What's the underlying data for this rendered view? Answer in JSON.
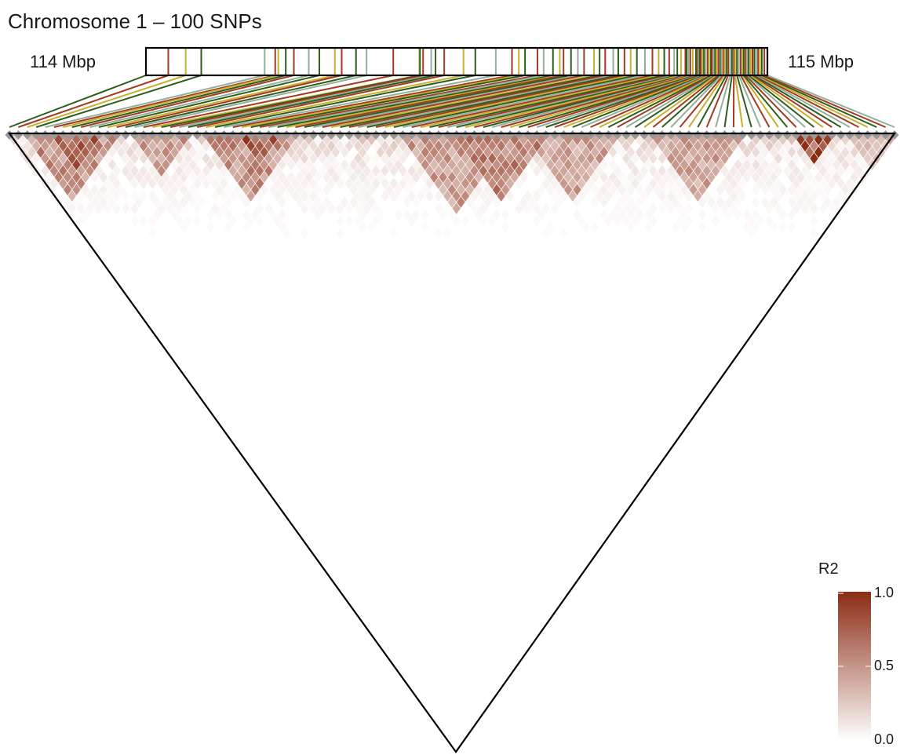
{
  "title": "Chromosome 1 – 100 SNPs",
  "region": {
    "start_label": "114 Mbp",
    "end_label": "115 Mbp",
    "start_mbp": 114.0,
    "end_mbp": 115.0
  },
  "legend": {
    "title": "R2",
    "ticks": [
      "1.0",
      "0.5",
      "0.0"
    ],
    "low_color": "#ffffff",
    "high_color": "#8b2c14"
  },
  "chart_data": {
    "type": "heatmap",
    "title": "Chromosome 1 – 100 SNPs",
    "n_snps": 100,
    "value_range": [
      0,
      1
    ],
    "value_name": "R2",
    "snp_positions_mbp": [
      114.0,
      114.036,
      114.064,
      114.089,
      114.191,
      114.208,
      114.213,
      114.225,
      114.238,
      114.262,
      114.279,
      114.304,
      114.315,
      114.338,
      114.355,
      114.398,
      114.44,
      114.441,
      114.446,
      114.459,
      114.466,
      114.48,
      114.511,
      114.53,
      114.563,
      114.589,
      114.6,
      114.61,
      114.63,
      114.64,
      114.655,
      114.666,
      114.672,
      114.684,
      114.695,
      114.705,
      114.721,
      114.73,
      114.739,
      114.752,
      114.76,
      114.77,
      114.78,
      114.79,
      114.803,
      114.815,
      114.825,
      114.834,
      114.842,
      114.85,
      114.855,
      114.861,
      114.868,
      114.87,
      114.873,
      114.876,
      114.88,
      114.885,
      114.887,
      114.889,
      114.891,
      114.893,
      114.896,
      114.898,
      114.901,
      114.904,
      114.906,
      114.909,
      114.911,
      114.914,
      114.916,
      114.918,
      114.921,
      114.924,
      114.926,
      114.929,
      114.931,
      114.934,
      114.937,
      114.94,
      114.943,
      114.946,
      114.948,
      114.951,
      114.954,
      114.957,
      114.96,
      114.962,
      114.965,
      114.968,
      114.97,
      114.973,
      114.976,
      114.979,
      114.982,
      114.985,
      114.988,
      114.991,
      114.995,
      115.0
    ],
    "snp_colors": [
      "#2e5e1e",
      "#a33a22",
      "#c9b030",
      "#2e5e1e",
      "#93b09a",
      "#a33a22",
      "#c9b030",
      "#2e5e1e",
      "#a33a22",
      "#93b09a",
      "#2e5e1e",
      "#c9b030",
      "#a33a22",
      "#2e5e1e",
      "#93b09a",
      "#a33a22",
      "#c9b030",
      "#2e5e1e",
      "#a33a22",
      "#93b09a"
    ],
    "blocks": [
      {
        "from": 2,
        "to": 12,
        "r2": 0.6
      },
      {
        "from": 5,
        "to": 10,
        "r2": 0.8
      },
      {
        "from": 14,
        "to": 20,
        "r2": 0.55
      },
      {
        "from": 22,
        "to": 32,
        "r2": 0.6
      },
      {
        "from": 26,
        "to": 30,
        "r2": 0.85
      },
      {
        "from": 44,
        "to": 56,
        "r2": 0.55
      },
      {
        "from": 50,
        "to": 60,
        "r2": 0.65
      },
      {
        "from": 58,
        "to": 68,
        "r2": 0.5
      },
      {
        "from": 72,
        "to": 82,
        "r2": 0.5
      },
      {
        "from": 88,
        "to": 92,
        "r2": 0.95
      },
      {
        "from": 94,
        "to": 99,
        "r2": 0.35
      }
    ]
  }
}
